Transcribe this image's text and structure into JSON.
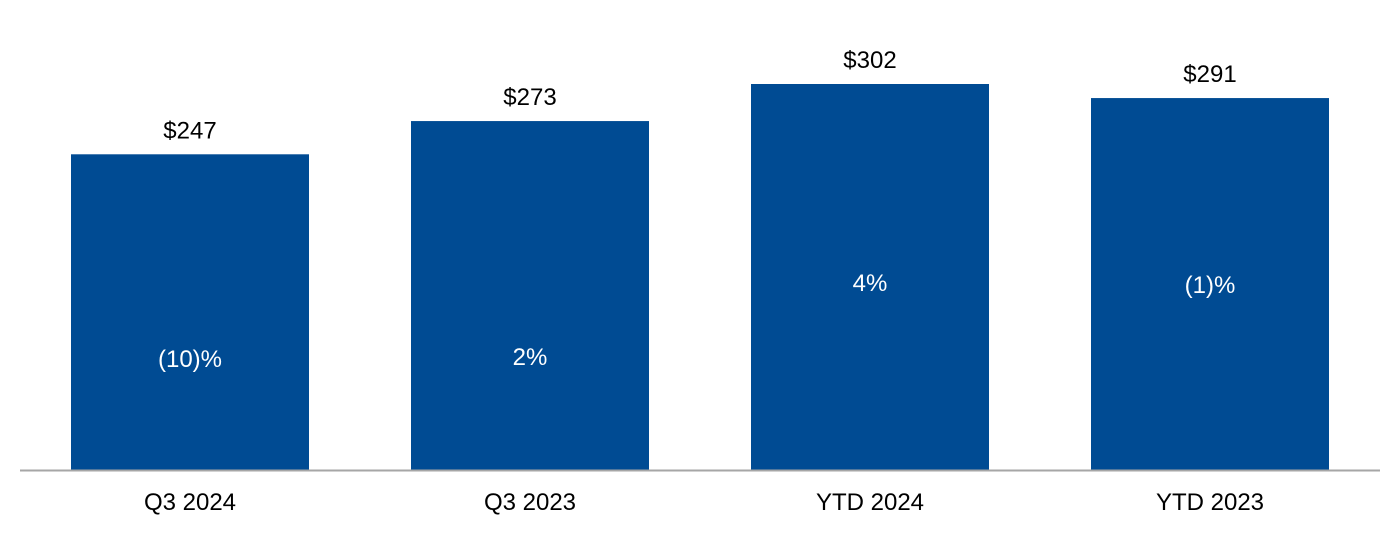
{
  "chart_data": {
    "type": "bar",
    "categories": [
      "Q3 2024",
      "Q3 2023",
      "YTD 2024",
      "YTD 2023"
    ],
    "values": [
      247,
      273,
      302,
      291
    ],
    "value_labels": [
      "$247",
      "$273",
      "$302",
      "$291"
    ],
    "inner_labels": [
      "(10)%",
      "2%",
      "4%",
      "(1)%"
    ],
    "ylim": [
      0,
      320
    ],
    "grid": false,
    "legend": "none",
    "colors": {
      "bar": "#004B93",
      "axis": "#A6A6A6"
    }
  }
}
